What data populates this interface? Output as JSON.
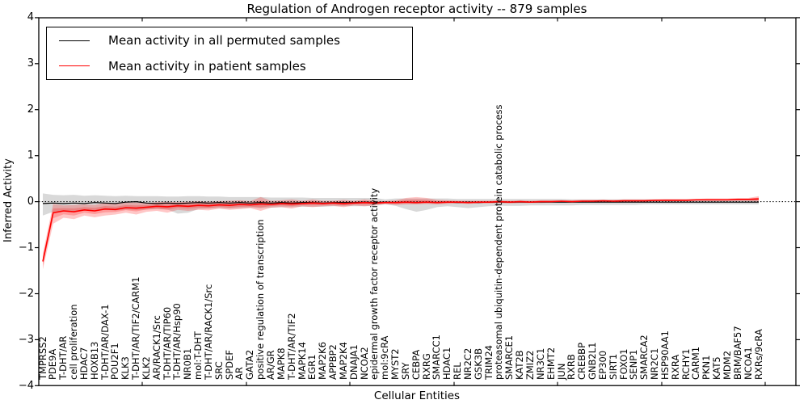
{
  "title": "Regulation of Androgen receptor activity -- 879 samples",
  "axes": {
    "ylabel": "Inferred Activity",
    "xlabel": "Cellular Entities",
    "ytick_labels": [
      "4",
      "3",
      "2",
      "1",
      "0",
      "−1",
      "−2",
      "−3",
      "−4"
    ],
    "ytick_values": [
      4,
      3,
      2,
      1,
      0,
      -1,
      -2,
      -3,
      -4
    ]
  },
  "legend": {
    "items": [
      {
        "label": "Mean activity in all permuted samples",
        "color": "#000000"
      },
      {
        "label": "Mean activity in patient samples",
        "color": "#ff0000"
      }
    ]
  },
  "colors": {
    "patient_line": "#ff0000",
    "patient_band": "rgba(255,0,0,0.22)",
    "permuted_line": "#000000",
    "permuted_band": "rgba(0,0,0,0.15)",
    "frame": "#000000"
  },
  "chart_data": {
    "type": "line",
    "title": "Regulation of Androgen receptor activity -- 879 samples",
    "xlabel": "Cellular Entities",
    "ylabel": "Inferred Activity",
    "ylim": [
      -4,
      4
    ],
    "grid": false,
    "legend_position": "upper left",
    "reference_line": {
      "y": 0,
      "style": "dotted",
      "color": "#000000"
    },
    "categories": [
      "TMPRSS2",
      "PDE9A",
      "T-DHT/AR",
      "cell proliferation",
      "HDAC7",
      "HOXB13",
      "T-DHT/AR/DAX-1",
      "POU2F1",
      "KLK3",
      "T-DHT/AR/TIF2/CARM1",
      "KLK2",
      "AR/RACK1/Src",
      "T-DHT/AR/TIP60",
      "T-DHT/AR/Hsp90",
      "NR0B1",
      "mol:T-DHT",
      "T-DHT/AR/RACK1/Src",
      "SRC",
      "SPDEF",
      "AR",
      "GATA2",
      "positive regulation of transcription",
      "AR/GR",
      "MAPK8",
      "T-DHT/AR/TIF2",
      "MAPK14",
      "EGR1",
      "MAP2K6",
      "APPBP2",
      "MAP2K4",
      "DNAJA1",
      "NCOA2",
      "epidermal growth factor receptor activity",
      "mol:9cRA",
      "MYST2",
      "SRY",
      "CEBPA",
      "RXRG",
      "SMARCC1",
      "HDAC1",
      "REL",
      "NR2C2",
      "GSK3B",
      "TRIM24",
      "proteasomal ubiquitin-dependent protein catabolic process",
      "SMARCE1",
      "KAT2B",
      "ZMIZ2",
      "NR3C1",
      "EHMT2",
      "JUN",
      "RXRB",
      "CREBBP",
      "GNB2L1",
      "EP300",
      "SIRT1",
      "FOXO1",
      "SENP1",
      "SMARCA2",
      "NR2C1",
      "HSP90AA1",
      "RXRA",
      "RCHY1",
      "CARM1",
      "PKN1",
      "KAT5",
      "MDM2",
      "BRM/BAF57",
      "NCOA1",
      "RXRs/9cRA"
    ],
    "series": [
      {
        "name": "Mean activity in all permuted samples",
        "color": "#000000",
        "values": [
          -0.04,
          -0.03,
          -0.04,
          -0.03,
          -0.04,
          -0.02,
          -0.03,
          -0.04,
          -0.01,
          0.0,
          -0.03,
          -0.04,
          -0.03,
          -0.04,
          -0.03,
          -0.02,
          -0.03,
          -0.02,
          -0.03,
          -0.02,
          -0.03,
          -0.02,
          -0.03,
          -0.02,
          -0.03,
          -0.02,
          -0.02,
          -0.03,
          -0.02,
          -0.02,
          -0.02,
          -0.01,
          -0.02,
          -0.01,
          -0.02,
          -0.01,
          -0.02,
          -0.01,
          -0.02,
          -0.01,
          -0.02,
          -0.01,
          -0.02,
          -0.01,
          -0.01,
          -0.01,
          -0.01,
          -0.01,
          -0.01,
          -0.01,
          -0.01,
          -0.01,
          -0.01,
          -0.01,
          -0.01,
          -0.01,
          -0.01,
          -0.01,
          -0.01,
          -0.01,
          -0.01,
          -0.01,
          -0.01,
          -0.01,
          -0.01,
          -0.01,
          -0.01,
          -0.01,
          -0.01,
          -0.01
        ],
        "band_upper": [
          0.18,
          0.15,
          0.14,
          0.15,
          0.13,
          0.14,
          0.13,
          0.12,
          0.13,
          0.12,
          0.12,
          0.12,
          0.11,
          0.11,
          0.12,
          0.12,
          0.11,
          0.11,
          0.1,
          0.1,
          0.1,
          0.1,
          0.09,
          0.09,
          0.09,
          0.09,
          0.08,
          0.08,
          0.08,
          0.08,
          0.08,
          0.08,
          0.08,
          0.05,
          0.07,
          0.07,
          0.07,
          0.07,
          0.07,
          0.07,
          0.06,
          0.06,
          0.06,
          0.06,
          0.06,
          0.06,
          0.06,
          0.06,
          0.06,
          0.06,
          0.06,
          0.05,
          0.05,
          0.05,
          0.05,
          0.05,
          0.05,
          0.05,
          0.05,
          0.05,
          0.05,
          0.05,
          0.05,
          0.05,
          0.05,
          0.05,
          0.05,
          0.05,
          0.05,
          0.05
        ],
        "band_lower": [
          -0.3,
          -0.22,
          -0.2,
          -0.21,
          -0.19,
          -0.2,
          -0.18,
          -0.19,
          -0.17,
          -0.18,
          -0.17,
          -0.16,
          -0.17,
          -0.26,
          -0.24,
          -0.16,
          -0.15,
          -0.14,
          -0.15,
          -0.14,
          -0.13,
          -0.14,
          -0.13,
          -0.12,
          -0.12,
          -0.11,
          -0.11,
          -0.11,
          -0.1,
          -0.1,
          -0.1,
          -0.1,
          -0.09,
          -0.06,
          -0.09,
          -0.16,
          -0.22,
          -0.18,
          -0.12,
          -0.1,
          -0.12,
          -0.14,
          -0.12,
          -0.1,
          -0.09,
          -0.09,
          -0.09,
          -0.08,
          -0.08,
          -0.08,
          -0.08,
          -0.08,
          -0.07,
          -0.07,
          -0.07,
          -0.07,
          -0.07,
          -0.07,
          -0.06,
          -0.06,
          -0.06,
          -0.06,
          -0.06,
          -0.06,
          -0.06,
          -0.06,
          -0.06,
          -0.06,
          -0.06,
          -0.06
        ]
      },
      {
        "name": "Mean activity in patient samples",
        "color": "#ff0000",
        "values": [
          -1.3,
          -0.24,
          -0.2,
          -0.22,
          -0.18,
          -0.2,
          -0.16,
          -0.17,
          -0.13,
          -0.14,
          -0.12,
          -0.1,
          -0.11,
          -0.09,
          -0.1,
          -0.08,
          -0.09,
          -0.07,
          -0.08,
          -0.06,
          -0.07,
          -0.05,
          -0.06,
          -0.04,
          -0.05,
          -0.04,
          -0.03,
          -0.04,
          -0.03,
          -0.04,
          -0.03,
          -0.02,
          -0.03,
          -0.02,
          -0.02,
          -0.01,
          -0.02,
          -0.01,
          -0.02,
          -0.01,
          -0.01,
          -0.02,
          -0.01,
          -0.01,
          0.0,
          -0.01,
          0.0,
          -0.01,
          0.0,
          0.0,
          0.01,
          0.0,
          0.01,
          0.01,
          0.02,
          0.01,
          0.02,
          0.02,
          0.02,
          0.03,
          0.03,
          0.03,
          0.03,
          0.04,
          0.04,
          0.04,
          0.04,
          0.05,
          0.05,
          0.06
        ],
        "band_upper": [
          -1.13,
          -0.05,
          -0.08,
          -0.07,
          -0.06,
          -0.07,
          -0.03,
          -0.05,
          -0.02,
          -0.02,
          -0.03,
          -0.01,
          0.0,
          -0.01,
          0.0,
          0.01,
          0.0,
          0.01,
          0.02,
          0.03,
          0.01,
          0.1,
          0.02,
          0.03,
          0.05,
          0.02,
          0.05,
          0.02,
          0.02,
          0.04,
          0.02,
          0.05,
          0.02,
          0.01,
          0.03,
          0.08,
          0.1,
          0.08,
          0.04,
          0.03,
          0.02,
          0.02,
          0.02,
          0.02,
          0.03,
          0.02,
          0.03,
          0.02,
          0.03,
          0.03,
          0.03,
          0.03,
          0.04,
          0.04,
          0.04,
          0.04,
          0.05,
          0.05,
          0.05,
          0.05,
          0.06,
          0.06,
          0.06,
          0.06,
          0.07,
          0.07,
          0.07,
          0.08,
          0.08,
          0.12
        ],
        "band_lower": [
          -1.47,
          -0.48,
          -0.35,
          -0.38,
          -0.3,
          -0.34,
          -0.3,
          -0.28,
          -0.24,
          -0.28,
          -0.22,
          -0.2,
          -0.24,
          -0.18,
          -0.2,
          -0.18,
          -0.19,
          -0.15,
          -0.18,
          -0.16,
          -0.14,
          -0.2,
          -0.13,
          -0.12,
          -0.15,
          -0.1,
          -0.12,
          -0.1,
          -0.09,
          -0.12,
          -0.08,
          -0.1,
          -0.08,
          -0.05,
          -0.07,
          -0.06,
          -0.06,
          -0.05,
          -0.06,
          -0.05,
          -0.04,
          -0.05,
          -0.04,
          -0.04,
          -0.03,
          -0.04,
          -0.03,
          -0.03,
          -0.03,
          -0.02,
          -0.02,
          -0.02,
          -0.01,
          -0.01,
          0.0,
          -0.01,
          0.0,
          0.0,
          0.0,
          0.01,
          0.01,
          0.01,
          0.01,
          0.02,
          0.02,
          0.02,
          0.02,
          0.02,
          0.02,
          0.0
        ]
      }
    ]
  }
}
